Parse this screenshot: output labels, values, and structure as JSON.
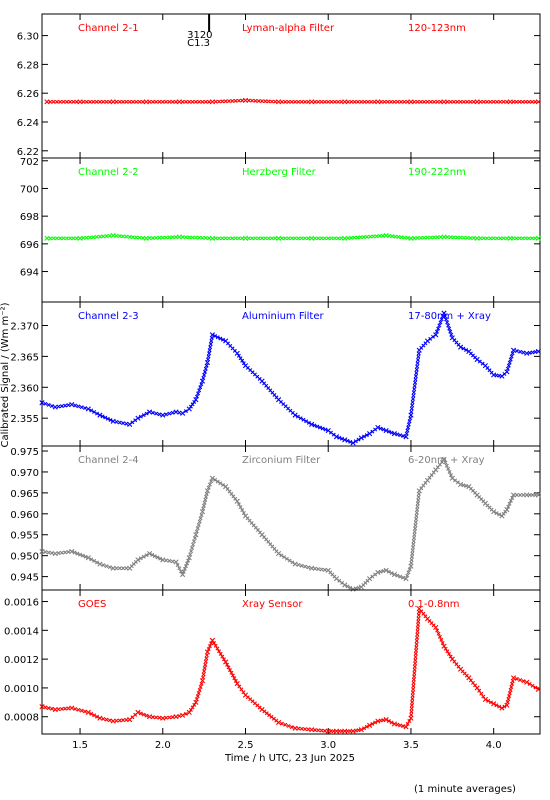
{
  "figure": {
    "ylabel": "Calibrated Signal / (Wm m⁻²)",
    "xlabel": "Time / h UTC, 23 Jun 2025",
    "footnote": "(1 minute averages)",
    "marker": {
      "line1": "3120",
      "line2": "C1.3",
      "time": 2.28
    },
    "xlim": [
      1.27,
      4.28
    ],
    "xticks": [
      1.5,
      2.0,
      2.5,
      3.0,
      3.5,
      4.0
    ],
    "xtick_labels": [
      "1.5",
      "2.0",
      "2.5",
      "3.0",
      "3.5",
      "4.0"
    ]
  },
  "chart_data": [
    {
      "type": "scatter",
      "channel": "Channel 2-1",
      "filter": "Lyman-alpha Filter",
      "band": "120-123nm",
      "color": "#ff0000",
      "ylim": [
        6.215,
        6.315
      ],
      "yticks": [
        6.22,
        6.24,
        6.26,
        6.28,
        6.3
      ],
      "ytick_labels": [
        "6.22",
        "6.24",
        "6.26",
        "6.28",
        "6.30"
      ],
      "x": [
        1.3,
        1.5,
        1.7,
        1.9,
        2.1,
        2.3,
        2.5,
        2.7,
        2.9,
        3.1,
        3.3,
        3.5,
        3.7,
        3.9,
        4.1,
        4.27
      ],
      "y": [
        6.254,
        6.254,
        6.254,
        6.254,
        6.254,
        6.254,
        6.255,
        6.254,
        6.254,
        6.254,
        6.254,
        6.254,
        6.254,
        6.254,
        6.254,
        6.254
      ]
    },
    {
      "type": "scatter",
      "channel": "Channel 2-2",
      "filter": "Herzberg Filter",
      "band": "190-222nm",
      "color": "#00ff00",
      "ylim": [
        691.8,
        702.2
      ],
      "yticks": [
        694,
        696,
        698,
        700,
        702
      ],
      "ytick_labels": [
        "694",
        "696",
        "698",
        "700",
        "702"
      ],
      "x": [
        1.3,
        1.5,
        1.7,
        1.9,
        2.1,
        2.3,
        2.5,
        2.7,
        2.9,
        3.1,
        3.35,
        3.5,
        3.7,
        3.9,
        4.1,
        4.27
      ],
      "y": [
        696.4,
        696.4,
        696.6,
        696.4,
        696.5,
        696.4,
        696.4,
        696.4,
        696.4,
        696.4,
        696.6,
        696.4,
        696.5,
        696.4,
        696.4,
        696.4
      ]
    },
    {
      "type": "scatter",
      "channel": "Channel 2-3",
      "filter": "Aluminium Filter",
      "band": "17-80nm + Xray",
      "color": "#0000ff",
      "ylim": [
        2.3505,
        2.3738
      ],
      "yticks": [
        2.355,
        2.36,
        2.365,
        2.37
      ],
      "ytick_labels": [
        "2.355",
        "2.360",
        "2.365",
        "2.370"
      ],
      "x": [
        1.27,
        1.35,
        1.45,
        1.55,
        1.62,
        1.7,
        1.8,
        1.85,
        1.92,
        2.0,
        2.08,
        2.12,
        2.16,
        2.2,
        2.24,
        2.27,
        2.3,
        2.38,
        2.45,
        2.5,
        2.6,
        2.7,
        2.8,
        2.9,
        3.0,
        3.05,
        3.1,
        3.15,
        3.2,
        3.25,
        3.3,
        3.35,
        3.4,
        3.47,
        3.5,
        3.55,
        3.6,
        3.65,
        3.7,
        3.75,
        3.8,
        3.85,
        3.9,
        3.95,
        4.0,
        4.05,
        4.08,
        4.12,
        4.2,
        4.27
      ],
      "y": [
        2.3575,
        2.3568,
        2.3572,
        2.3565,
        2.3555,
        2.3545,
        2.354,
        2.355,
        2.356,
        2.3555,
        2.356,
        2.3558,
        2.3565,
        2.358,
        2.361,
        2.364,
        2.3685,
        2.3675,
        2.3655,
        2.3635,
        2.361,
        2.358,
        2.3555,
        2.354,
        2.353,
        2.352,
        2.3515,
        2.351,
        2.3518,
        2.3525,
        2.3535,
        2.353,
        2.3525,
        2.352,
        2.3555,
        2.366,
        2.3675,
        2.3685,
        2.372,
        2.368,
        2.3665,
        2.3658,
        2.3645,
        2.3635,
        2.362,
        2.3618,
        2.3625,
        2.366,
        2.3655,
        2.3658
      ]
    },
    {
      "type": "scatter",
      "channel": "Channel 2-4",
      "filter": "Zirconium Filter",
      "band": "6-20nm + Xray",
      "color": "#808080",
      "ylim": [
        0.9418,
        0.9762
      ],
      "yticks": [
        0.945,
        0.95,
        0.955,
        0.96,
        0.965,
        0.97,
        0.975
      ],
      "ytick_labels": [
        "0.945",
        "0.950",
        "0.955",
        "0.960",
        "0.965",
        "0.970",
        "0.975"
      ],
      "x": [
        1.27,
        1.35,
        1.45,
        1.55,
        1.62,
        1.7,
        1.8,
        1.85,
        1.92,
        2.0,
        2.08,
        2.12,
        2.16,
        2.2,
        2.24,
        2.27,
        2.3,
        2.38,
        2.45,
        2.5,
        2.6,
        2.7,
        2.8,
        2.9,
        3.0,
        3.05,
        3.1,
        3.15,
        3.2,
        3.25,
        3.3,
        3.35,
        3.4,
        3.47,
        3.5,
        3.55,
        3.6,
        3.65,
        3.7,
        3.75,
        3.8,
        3.85,
        3.9,
        3.95,
        4.0,
        4.05,
        4.08,
        4.12,
        4.2,
        4.27
      ],
      "y": [
        0.951,
        0.9505,
        0.951,
        0.9495,
        0.948,
        0.947,
        0.947,
        0.949,
        0.9505,
        0.949,
        0.9485,
        0.9455,
        0.9495,
        0.955,
        0.9605,
        0.9655,
        0.9685,
        0.9665,
        0.963,
        0.9595,
        0.955,
        0.9505,
        0.948,
        0.947,
        0.9465,
        0.9445,
        0.943,
        0.942,
        0.9425,
        0.9445,
        0.946,
        0.9465,
        0.9455,
        0.9445,
        0.9475,
        0.9655,
        0.968,
        0.9705,
        0.973,
        0.9685,
        0.967,
        0.9665,
        0.9645,
        0.9625,
        0.9605,
        0.9595,
        0.961,
        0.9645,
        0.9645,
        0.9645
      ]
    },
    {
      "type": "scatter",
      "channel": "GOES",
      "filter": "Xray Sensor",
      "band": "0.1-0.8nm",
      "color": "#ff0000",
      "ylim": [
        0.00068,
        0.00168
      ],
      "yticks": [
        0.0008,
        0.001,
        0.0012,
        0.0014,
        0.0016
      ],
      "ytick_labels": [
        "0.0008",
        "0.0010",
        "0.0012",
        "0.0014",
        "0.0016"
      ],
      "x": [
        1.27,
        1.35,
        1.45,
        1.55,
        1.62,
        1.7,
        1.8,
        1.85,
        1.92,
        2.0,
        2.08,
        2.12,
        2.16,
        2.2,
        2.24,
        2.27,
        2.3,
        2.38,
        2.45,
        2.5,
        2.6,
        2.7,
        2.8,
        2.9,
        3.0,
        3.05,
        3.1,
        3.15,
        3.2,
        3.25,
        3.3,
        3.35,
        3.4,
        3.47,
        3.5,
        3.55,
        3.6,
        3.65,
        3.7,
        3.75,
        3.8,
        3.85,
        3.9,
        3.95,
        4.0,
        4.05,
        4.08,
        4.12,
        4.2,
        4.27
      ],
      "y": [
        0.00087,
        0.00085,
        0.00086,
        0.00083,
        0.00079,
        0.00077,
        0.00078,
        0.00083,
        0.0008,
        0.00079,
        0.0008,
        0.00081,
        0.00083,
        0.0009,
        0.00105,
        0.00125,
        0.00133,
        0.00118,
        0.00103,
        0.00095,
        0.00085,
        0.00076,
        0.00072,
        0.00071,
        0.0007,
        0.0007,
        0.0007,
        0.0007,
        0.00071,
        0.00074,
        0.00077,
        0.00078,
        0.00075,
        0.00073,
        0.00079,
        0.00155,
        0.00148,
        0.00142,
        0.00129,
        0.0012,
        0.00113,
        0.00107,
        0.001,
        0.00092,
        0.00089,
        0.00086,
        0.00088,
        0.00107,
        0.00104,
        0.00099
      ]
    }
  ]
}
